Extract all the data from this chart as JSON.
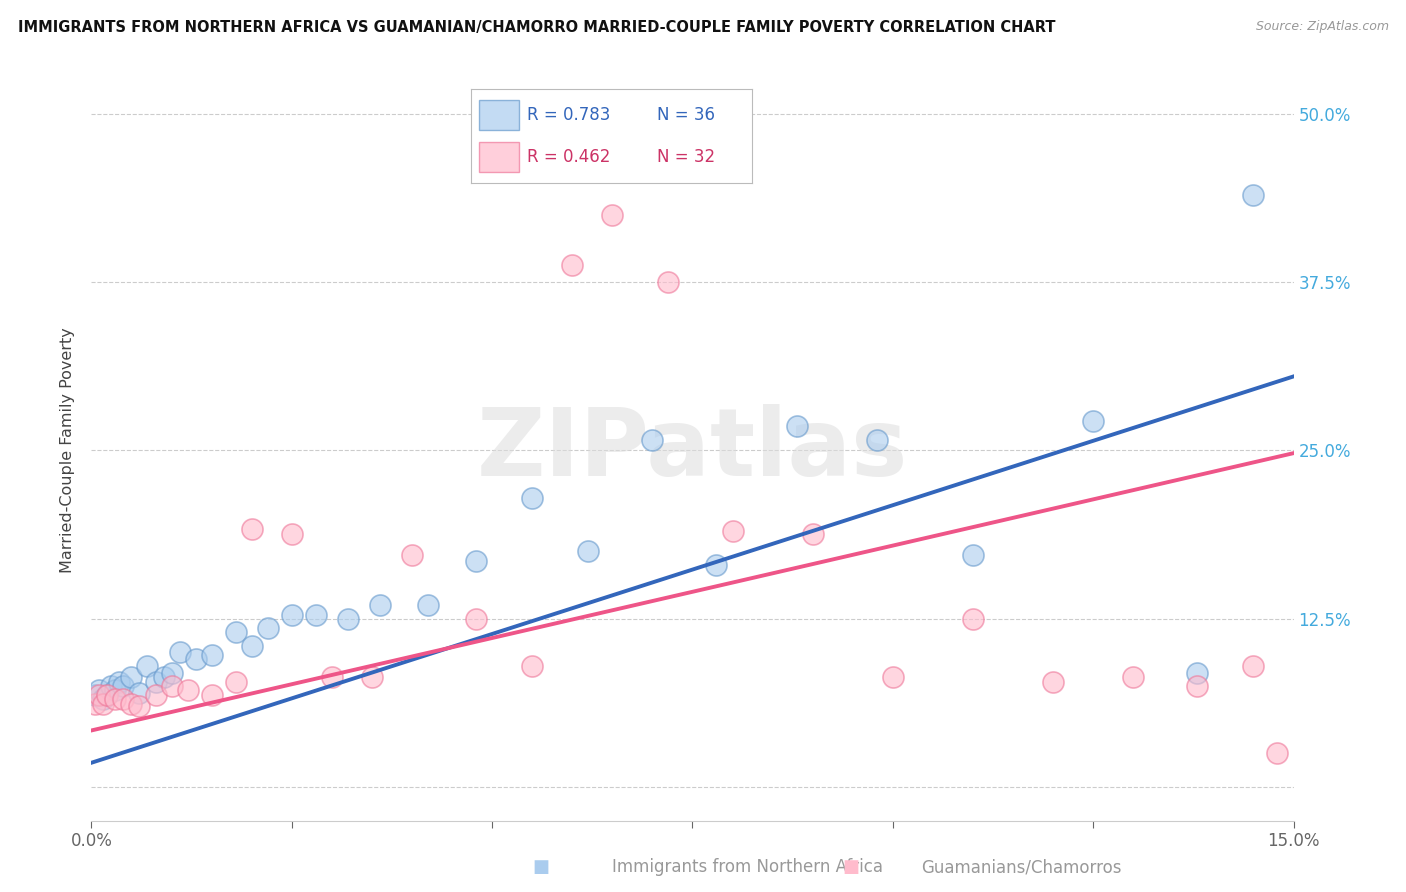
{
  "title": "IMMIGRANTS FROM NORTHERN AFRICA VS GUAMANIAN/CHAMORRO MARRIED-COUPLE FAMILY POVERTY CORRELATION CHART",
  "source": "Source: ZipAtlas.com",
  "xlabel_blue": "Immigrants from Northern Africa",
  "xlabel_pink": "Guamanians/Chamorros",
  "ylabel": "Married-Couple Family Poverty",
  "legend_blue_r": "R = 0.783",
  "legend_blue_n": "N = 36",
  "legend_pink_r": "R = 0.462",
  "legend_pink_n": "N = 32",
  "blue_scatter_color": "#AACCEE",
  "blue_edge_color": "#6699CC",
  "pink_scatter_color": "#FFBBCC",
  "pink_edge_color": "#EE7799",
  "blue_line_color": "#3366BB",
  "pink_line_color": "#EE5588",
  "blue_legend_text": "#3366BB",
  "pink_legend_text": "#CC3366",
  "right_tick_color": "#44AADD",
  "xmin": 0.0,
  "xmax": 0.15,
  "ymin": -0.025,
  "ymax": 0.525,
  "yticks": [
    0.0,
    0.125,
    0.25,
    0.375,
    0.5
  ],
  "ytick_labels": [
    "",
    "12.5%",
    "25.0%",
    "37.5%",
    "50.0%"
  ],
  "watermark": "ZIPatlas",
  "blue_x": [
    0.0005,
    0.001,
    0.0015,
    0.002,
    0.0025,
    0.003,
    0.0035,
    0.004,
    0.005,
    0.006,
    0.007,
    0.008,
    0.009,
    0.01,
    0.011,
    0.013,
    0.015,
    0.018,
    0.02,
    0.022,
    0.025,
    0.028,
    0.032,
    0.036,
    0.042,
    0.048,
    0.055,
    0.062,
    0.07,
    0.078,
    0.088,
    0.098,
    0.11,
    0.125,
    0.138,
    0.145
  ],
  "blue_y": [
    0.068,
    0.072,
    0.065,
    0.068,
    0.075,
    0.072,
    0.078,
    0.075,
    0.082,
    0.07,
    0.09,
    0.078,
    0.082,
    0.085,
    0.1,
    0.095,
    0.098,
    0.115,
    0.105,
    0.118,
    0.128,
    0.128,
    0.125,
    0.135,
    0.135,
    0.168,
    0.215,
    0.175,
    0.258,
    0.165,
    0.268,
    0.258,
    0.172,
    0.272,
    0.085,
    0.44
  ],
  "pink_x": [
    0.0005,
    0.001,
    0.0015,
    0.002,
    0.003,
    0.004,
    0.005,
    0.006,
    0.008,
    0.01,
    0.012,
    0.015,
    0.018,
    0.02,
    0.025,
    0.03,
    0.035,
    0.04,
    0.048,
    0.055,
    0.06,
    0.065,
    0.072,
    0.08,
    0.09,
    0.1,
    0.11,
    0.12,
    0.13,
    0.138,
    0.145,
    0.148
  ],
  "pink_y": [
    0.062,
    0.068,
    0.062,
    0.068,
    0.065,
    0.065,
    0.062,
    0.06,
    0.068,
    0.075,
    0.072,
    0.068,
    0.078,
    0.192,
    0.188,
    0.082,
    0.082,
    0.172,
    0.125,
    0.09,
    0.388,
    0.425,
    0.375,
    0.19,
    0.188,
    0.082,
    0.125,
    0.078,
    0.082,
    0.075,
    0.09,
    0.025
  ],
  "blue_line_x0": 0.0,
  "blue_line_y0": 0.018,
  "blue_line_x1": 0.15,
  "blue_line_y1": 0.305,
  "pink_line_x0": 0.0,
  "pink_line_y0": 0.042,
  "pink_line_x1": 0.15,
  "pink_line_y1": 0.248
}
